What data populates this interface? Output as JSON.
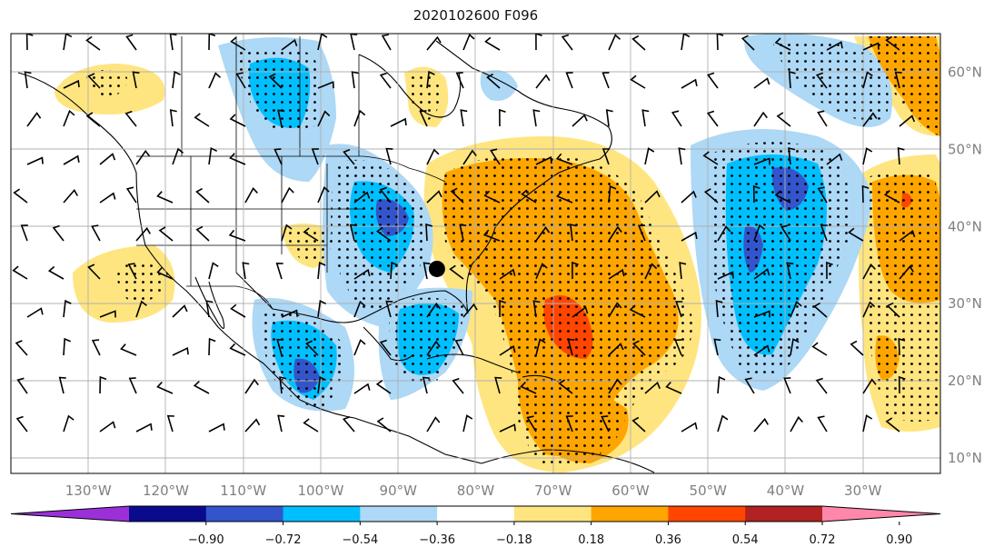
{
  "title": "2020102600 F096",
  "map": {
    "lat_ticks": [
      {
        "lat": 60,
        "label": "60°N"
      },
      {
        "lat": 50,
        "label": "50°N"
      },
      {
        "lat": 40,
        "label": "40°N"
      },
      {
        "lat": 30,
        "label": "30°N"
      },
      {
        "lat": 20,
        "label": "20°N"
      },
      {
        "lat": 10,
        "label": "10°N"
      }
    ],
    "lon_ticks": [
      {
        "lon": -130,
        "label": "130°W"
      },
      {
        "lon": -120,
        "label": "120°W"
      },
      {
        "lon": -110,
        "label": "110°W"
      },
      {
        "lon": -100,
        "label": "100°W"
      },
      {
        "lon": -90,
        "label": "90°W"
      },
      {
        "lon": -80,
        "label": "80°W"
      },
      {
        "lon": -70,
        "label": "70°W"
      },
      {
        "lon": -60,
        "label": "60°W"
      },
      {
        "lon": -50,
        "label": "50°W"
      },
      {
        "lon": -40,
        "label": "40°W"
      },
      {
        "lon": -30,
        "label": "30°W"
      }
    ],
    "extent": {
      "lon_min": -140,
      "lon_max": -20,
      "lat_min": 8,
      "lat_max": 65
    },
    "marker": {
      "lon": -85,
      "lat": 34.5
    },
    "colors": {
      "ocean": "#ffffff",
      "coast": "#000000",
      "grid": "#b0b0b0"
    }
  },
  "colorbar": {
    "ticks": [
      "−0.90",
      "−0.72",
      "−0.54",
      "−0.36",
      "−0.18",
      "0.18",
      "0.36",
      "0.54",
      "0.72",
      "0.90"
    ],
    "colors": [
      "#9b30d9",
      "#0a0a8c",
      "#3355cc",
      "#00bfff",
      "#add8f6",
      "#ffffff",
      "#ffe57f",
      "#ffa500",
      "#ff4500",
      "#b22222",
      "#ff88aa"
    ]
  },
  "fields": [
    {
      "name": "neg-anom-north-atlantic",
      "color": "#add8f6"
    },
    {
      "name": "pos-anom-atlantic",
      "color": "#ffa500"
    }
  ]
}
